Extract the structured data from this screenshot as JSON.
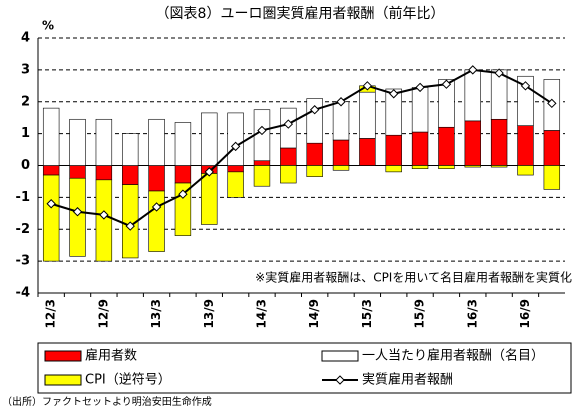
{
  "chart_data": {
    "type": "bar",
    "title": "（図表8）ユーロ圏実質雇用者報酬（前年比）",
    "y_label": "%",
    "annotation": "※実質雇用者報酬は、CPIを用いて名目雇用者報酬を実質化",
    "source": "（出所）ファクトセットより明治安田生命作成",
    "categories": [
      "12/3",
      null,
      "12/9",
      null,
      "13/3",
      null,
      "13/9",
      null,
      "14/3",
      null,
      "14/9",
      null,
      "15/3",
      null,
      "15/9",
      null,
      "16/3",
      null,
      "16/9",
      null
    ],
    "series": [
      {
        "name": "雇用者数",
        "type": "bar",
        "color": "#ff0000",
        "values": [
          -0.3,
          -0.4,
          -0.45,
          -0.6,
          -0.8,
          -0.55,
          -0.25,
          -0.2,
          0.15,
          0.55,
          0.7,
          0.8,
          0.85,
          0.95,
          1.05,
          1.2,
          1.4,
          1.45,
          1.25,
          1.1
        ]
      },
      {
        "name": "一人当たり雇用者報酬（名目）",
        "type": "bar",
        "color": "#ffffff",
        "values": [
          1.8,
          1.45,
          1.45,
          1.0,
          1.45,
          1.35,
          1.65,
          1.65,
          1.6,
          1.25,
          1.4,
          1.2,
          1.45,
          1.45,
          1.4,
          1.5,
          1.6,
          1.55,
          1.55,
          1.6
        ]
      },
      {
        "name": "CPI（逆符号）",
        "type": "bar",
        "color": "#ffff00",
        "values": [
          -2.7,
          -2.45,
          -2.55,
          -2.3,
          -1.9,
          -1.65,
          -1.6,
          -0.8,
          -0.65,
          -0.55,
          -0.35,
          -0.15,
          0.2,
          -0.2,
          -0.1,
          -0.1,
          -0.05,
          -0.05,
          -0.3,
          -0.75
        ]
      },
      {
        "name": "実質雇用者報酬",
        "type": "line",
        "color": "#000000",
        "values": [
          -1.2,
          -1.45,
          -1.55,
          -1.9,
          -1.3,
          -0.9,
          -0.2,
          0.6,
          1.1,
          1.3,
          1.75,
          2.0,
          2.5,
          2.25,
          2.45,
          2.55,
          3.0,
          2.9,
          2.5,
          1.95
        ]
      }
    ],
    "ylim": [
      -4,
      4
    ],
    "yticks": [
      -4,
      -3,
      -2,
      -1,
      0,
      1,
      2,
      3,
      4
    ],
    "grid": true
  }
}
